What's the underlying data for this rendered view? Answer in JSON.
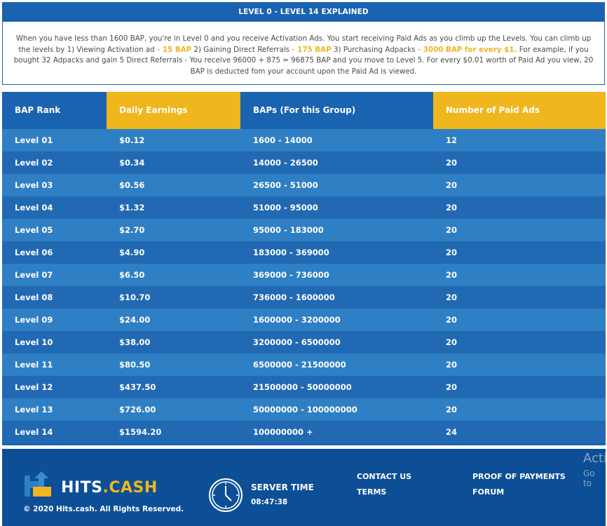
{
  "explainer": {
    "title": "LEVEL 0 - LEVEL 14 EXPLAINED",
    "text_1": "When you have less than 1600 BAP, you're in Level 0 and you receive Activation Ads. You start receiving Paid Ads as you climb up the Levels. You can climb up the levels by 1) Viewing Activation ad ",
    "hl_1": "- 15 BAP",
    "text_2": " 2) Gaining Direct Referrals ",
    "hl_2": "- 175 BAP",
    "text_3": " 3) Purchasing Adpacks ",
    "hl_3": "- 3000 BAP for every $1.",
    "text_4": " For example, if you bought 32 Adpacks and gain 5 Direct Referrals - You receive 96000 + 875 = 96875 BAP and you move to Level 5. For every $0.01 worth of Paid Ad you view, 20 BAP is deducted fom your account upon the Paid Ad is viewed."
  },
  "table": {
    "headers": [
      "BAP Rank",
      "Daily Earnings",
      "BAPs (For this Group)",
      "Number of Paid Ads"
    ],
    "rows": [
      [
        "Level 01",
        "$0.12",
        "1600 - 14000",
        "12"
      ],
      [
        "Level 02",
        "$0.34",
        "14000 - 26500",
        "20"
      ],
      [
        "Level 03",
        "$0.56",
        "26500 - 51000",
        "20"
      ],
      [
        "Level 04",
        "$1.32",
        "51000 - 95000",
        "20"
      ],
      [
        "Level 05",
        "$2.70",
        "95000 - 183000",
        "20"
      ],
      [
        "Level 06",
        "$4.90",
        "183000 - 369000",
        "20"
      ],
      [
        "Level 07",
        "$6.50",
        "369000 - 736000",
        "20"
      ],
      [
        "Level 08",
        "$10.70",
        "736000 - 1600000",
        "20"
      ],
      [
        "Level 09",
        "$24.00",
        "1600000 - 3200000",
        "20"
      ],
      [
        "Level 10",
        "$38.00",
        "3200000 - 6500000",
        "20"
      ],
      [
        "Level 11",
        "$80.50",
        "6500000 - 21500000",
        "20"
      ],
      [
        "Level 12",
        "$437.50",
        "21500000 - 50000000",
        "20"
      ],
      [
        "Level 13",
        "$726.00",
        "50000000 - 100000000",
        "20"
      ],
      [
        "Level 14",
        "$1594.20",
        "100000000 +",
        "24"
      ]
    ]
  },
  "footer": {
    "logo_hits": "HITS",
    "logo_dot": ".",
    "logo_cash": "CASH",
    "copyright": "© 2020 Hits.cash. All Rights Reserved.",
    "server_time_label": "SERVER TIME",
    "server_time_value": "08:47:38",
    "links": {
      "contact": "CONTACT US",
      "terms": "TERMS",
      "proof": "PROOF OF PAYMENTS",
      "forum": "FORUM"
    },
    "watermark_line1": "Acti",
    "watermark_line2": "Go to"
  },
  "colors": {
    "blue_header": "#1a63b1",
    "gold_header": "#efb61d",
    "row_light": "#2f7fc4",
    "row_dark": "#2169b3",
    "footer_bg": "#0d4f96",
    "highlight": "#f0b32a"
  }
}
